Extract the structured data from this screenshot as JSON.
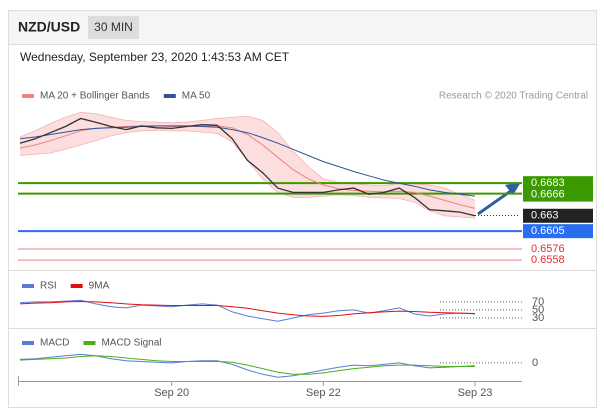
{
  "chart_data": {
    "type": "line",
    "title": "NZD/USD",
    "timeframe": "30 MIN",
    "timestamp": "Wednesday, September 23, 2020 1:43:53 AM CET",
    "credit": "Research © 2020 Trading Central",
    "categories": [
      null,
      null,
      null,
      null,
      null,
      null,
      null,
      null,
      null,
      null,
      "Sep 20",
      null,
      null,
      null,
      null,
      null,
      null,
      null,
      null,
      null,
      "Sep 22",
      null,
      null,
      null,
      null,
      null,
      null,
      null,
      null,
      null,
      "Sep 23"
    ],
    "ylim": [
      0.655,
      0.681
    ],
    "price": {
      "color": "#333333",
      "values": [
        0.6748,
        0.6755,
        0.6765,
        0.6775,
        0.6788,
        0.6782,
        0.6775,
        0.677,
        0.6776,
        0.6773,
        0.6772,
        0.6775,
        0.6778,
        0.6777,
        0.6755,
        0.672,
        0.67,
        0.6675,
        0.6668,
        0.6668,
        0.6668,
        0.6672,
        0.6675,
        0.6665,
        0.6668,
        0.6675,
        0.666,
        0.664,
        0.6638,
        0.6636,
        0.663
      ]
    },
    "series": [
      {
        "name": "MA 20 + Bollinger Bands",
        "color": "#f08080",
        "values": [
          0.674,
          0.6745,
          0.6752,
          0.676,
          0.6768,
          0.6772,
          0.6774,
          0.6775,
          0.6776,
          0.6776,
          0.6775,
          0.6775,
          0.6775,
          0.6776,
          0.6773,
          0.6762,
          0.6745,
          0.6725,
          0.6705,
          0.669,
          0.668,
          0.6674,
          0.6671,
          0.667,
          0.6669,
          0.667,
          0.6668,
          0.6662,
          0.6655,
          0.6648,
          0.6642
        ],
        "upper": [
          0.6758,
          0.6768,
          0.678,
          0.679,
          0.6798,
          0.6796,
          0.679,
          0.6785,
          0.6783,
          0.6782,
          0.6781,
          0.6782,
          0.6785,
          0.6788,
          0.679,
          0.6792,
          0.6785,
          0.6765,
          0.6735,
          0.671,
          0.669,
          0.6684,
          0.6682,
          0.668,
          0.6679,
          0.6683,
          0.6682,
          0.668,
          0.6675,
          0.6665,
          0.6655
        ],
        "lower": [
          0.6728,
          0.673,
          0.6732,
          0.6738,
          0.6745,
          0.6752,
          0.676,
          0.6765,
          0.6768,
          0.6769,
          0.6768,
          0.6768,
          0.6766,
          0.6764,
          0.675,
          0.672,
          0.669,
          0.6668,
          0.666,
          0.666,
          0.6662,
          0.6664,
          0.6663,
          0.666,
          0.6659,
          0.6658,
          0.6652,
          0.6638,
          0.663,
          0.6628,
          0.6626
        ]
      },
      {
        "name": "MA 50",
        "color": "#2f5597",
        "values": [
          0.6755,
          0.6758,
          0.6762,
          0.6766,
          0.677,
          0.6772,
          0.6773,
          0.6774,
          0.6775,
          0.6776,
          0.6776,
          0.6776,
          0.6775,
          0.6774,
          0.677,
          0.6765,
          0.6757,
          0.6748,
          0.6738,
          0.6728,
          0.6718,
          0.671,
          0.6702,
          0.6695,
          0.6688,
          0.6683,
          0.6678,
          0.6672,
          0.6668,
          0.6665,
          0.6662
        ]
      }
    ],
    "levels": [
      {
        "value": 0.6683,
        "color": "#3a9a00",
        "boxed": true
      },
      {
        "value": 0.6666,
        "color": "#3a9a00",
        "boxed": true
      },
      {
        "value": 0.663,
        "color": "#222222",
        "boxed": true
      },
      {
        "value": 0.6605,
        "color": "#2a6ef0",
        "boxed": true
      },
      {
        "value": 0.6576,
        "color": "#e23030",
        "boxed": false
      },
      {
        "value": 0.6558,
        "color": "#e23030",
        "boxed": false
      }
    ],
    "rsi": {
      "ylim": [
        10,
        112
      ],
      "yticks": [
        70,
        50,
        30
      ],
      "series": [
        {
          "name": "RSI",
          "color": "#5b7bd5",
          "values": [
            68,
            70,
            70,
            72,
            74,
            65,
            58,
            55,
            62,
            60,
            58,
            62,
            65,
            62,
            45,
            35,
            28,
            22,
            30,
            38,
            42,
            48,
            50,
            42,
            48,
            55,
            40,
            35,
            40,
            42,
            40
          ]
        },
        {
          "name": "9MA",
          "color": "#e01010",
          "values": [
            65,
            67,
            68,
            70,
            71,
            70,
            68,
            65,
            63,
            62,
            61,
            61,
            61,
            61,
            58,
            54,
            48,
            42,
            38,
            35,
            34,
            36,
            40,
            43,
            45,
            47,
            46,
            44,
            43,
            42,
            41
          ]
        }
      ]
    },
    "macd": {
      "ylim": [
        -0.0024,
        0.0021
      ],
      "yticks": [
        0
      ],
      "series": [
        {
          "name": "MACD",
          "color": "#5b7bd5",
          "values": [
            0.0005,
            0.0006,
            0.0008,
            0.001,
            0.0012,
            0.001,
            0.0006,
            0.0003,
            0.0002,
            0.0001,
            0.0,
            0.0002,
            0.0003,
            0.0003,
            -0.0002,
            -0.001,
            -0.0016,
            -0.002,
            -0.0018,
            -0.0014,
            -0.001,
            -0.0006,
            -0.0003,
            -0.0004,
            -0.0002,
            0.0,
            -0.0004,
            -0.0007,
            -0.0006,
            -0.0005,
            -0.0004
          ]
        },
        {
          "name": "MACD Signal",
          "color": "#4caf1a",
          "values": [
            0.0004,
            0.0005,
            0.0006,
            0.0007,
            0.0009,
            0.001,
            0.0009,
            0.0007,
            0.0005,
            0.0003,
            0.0002,
            0.0002,
            0.0002,
            0.0002,
            0.0001,
            -0.0003,
            -0.0008,
            -0.0013,
            -0.0016,
            -0.0016,
            -0.0014,
            -0.0011,
            -0.0008,
            -0.0006,
            -0.0004,
            -0.0003,
            -0.0003,
            -0.0004,
            -0.0005,
            -0.0005,
            -0.0005
          ]
        }
      ]
    }
  }
}
